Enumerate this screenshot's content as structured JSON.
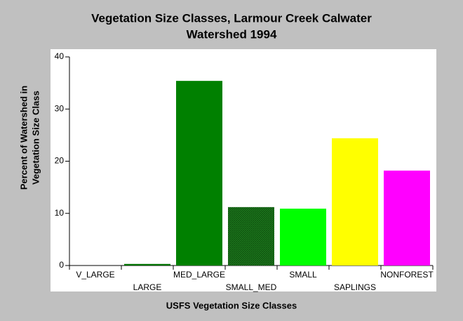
{
  "chart_data": {
    "type": "bar",
    "title": [
      "Vegetation Size Classes, Larmour Creek Calwater",
      "Watershed 1994"
    ],
    "x_label": "USFS Vegetation Size Classes",
    "y_label": [
      "Percent of Watershed in",
      "Vegetation Size Class"
    ],
    "categories": [
      "V_LARGE",
      "LARGE",
      "MED_LARGE",
      "SMALL_MED",
      "SMALL",
      "SAPLINGS",
      "NONFOREST"
    ],
    "values": [
      0,
      0.3,
      35.4,
      11.2,
      10.9,
      24.4,
      18.2
    ],
    "colors": [
      "#008000",
      "#007000",
      "#008000",
      "#1f7a1f",
      "#00ff00",
      "#ffff00",
      "#ff00ff"
    ],
    "ylim": [
      0,
      40
    ],
    "yticks": [
      0,
      10,
      20,
      30,
      40
    ]
  }
}
